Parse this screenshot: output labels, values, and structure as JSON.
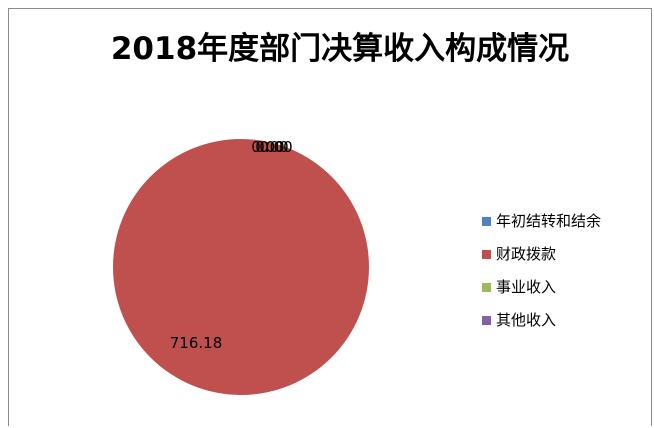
{
  "chart_data": {
    "type": "pie",
    "title": "2018年度部门决算收入构成情况",
    "categories": [
      "年初结转和结余",
      "财政拨款",
      "事业收入",
      "其他收入"
    ],
    "values": [
      0.0,
      716.18,
      0.0,
      0.0
    ],
    "data_labels": [
      "0.00",
      "716.18",
      "0.00",
      "0.00"
    ],
    "colors": [
      "#4f81bd",
      "#c0504d",
      "#9bbb59",
      "#8064a2"
    ],
    "legend": "right",
    "grid": false
  }
}
